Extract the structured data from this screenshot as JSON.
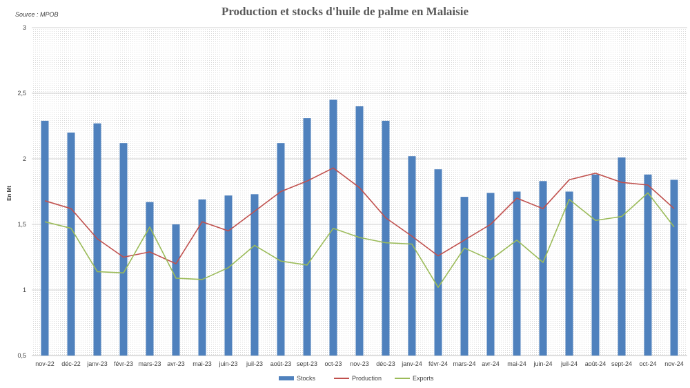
{
  "chart_data": {
    "type": "bar",
    "title": "Production et stocks d'huile de palme en Malaisie",
    "source": "Source : MPOB",
    "ylabel": "En Mt",
    "xlabel": "",
    "ylim": [
      0.5,
      3
    ],
    "yticks": [
      "0,5",
      "1",
      "1,5",
      "2",
      "2,5",
      "3"
    ],
    "ytick_values": [
      0.5,
      1,
      1.5,
      2,
      2.5,
      3
    ],
    "grid": true,
    "legend_position": "bottom",
    "categories": [
      "nov-22",
      "déc-22",
      "janv-23",
      "févr-23",
      "mars-23",
      "avr-23",
      "mai-23",
      "juin-23",
      "juil-23",
      "août-23",
      "sept-23",
      "oct-23",
      "nov-23",
      "déc-23",
      "janv-24",
      "févr-24",
      "mars-24",
      "avr-24",
      "mai-24",
      "juin-24",
      "juil-24",
      "août-24",
      "sept-24",
      "oct-24",
      "nov-24"
    ],
    "series": [
      {
        "name": "Stocks",
        "kind": "bar",
        "color": "#4f81bd",
        "values": [
          2.29,
          2.2,
          2.27,
          2.12,
          1.67,
          1.5,
          1.69,
          1.72,
          1.73,
          2.12,
          2.31,
          2.45,
          2.4,
          2.29,
          2.02,
          1.92,
          1.71,
          1.74,
          1.75,
          1.83,
          1.75,
          1.88,
          2.01,
          1.88,
          1.84
        ]
      },
      {
        "name": "Production",
        "kind": "line",
        "color": "#c0504d",
        "values": [
          1.68,
          1.62,
          1.39,
          1.25,
          1.29,
          1.2,
          1.52,
          1.45,
          1.6,
          1.75,
          1.83,
          1.93,
          1.78,
          1.55,
          1.41,
          1.26,
          1.38,
          1.5,
          1.7,
          1.62,
          1.84,
          1.89,
          1.82,
          1.8,
          1.62
        ]
      },
      {
        "name": "Exports",
        "kind": "line",
        "color": "#9bbb59",
        "values": [
          1.52,
          1.47,
          1.14,
          1.13,
          1.48,
          1.09,
          1.08,
          1.17,
          1.34,
          1.22,
          1.19,
          1.47,
          1.4,
          1.36,
          1.35,
          1.02,
          1.32,
          1.23,
          1.38,
          1.21,
          1.69,
          1.53,
          1.56,
          1.74,
          1.48
        ]
      }
    ]
  }
}
